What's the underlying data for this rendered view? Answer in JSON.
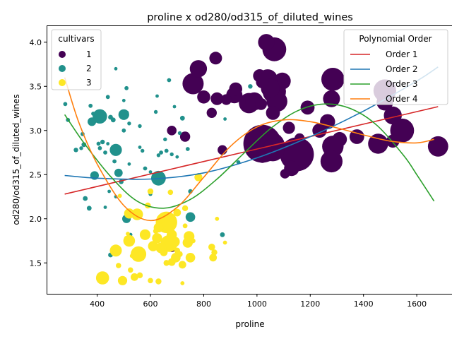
{
  "chart_data": {
    "type": "scatter",
    "title": "proline x od280/od315_of_diluted_wines",
    "xlabel": "proline",
    "ylabel": "od280/od315_of_diluted_wines",
    "xlim": [
      210,
      1735
    ],
    "ylim": [
      1.15,
      4.19
    ],
    "xticks": [
      400,
      600,
      800,
      1000,
      1200,
      1400,
      1600
    ],
    "yticks": [
      1.5,
      2.0,
      2.5,
      3.0,
      3.5,
      4.0
    ],
    "grid": false,
    "legend_cultivars": {
      "title": "cultivars",
      "placement": "top-left",
      "entries": [
        {
          "label": "1",
          "color": "#440154"
        },
        {
          "label": "2",
          "color": "#21918c"
        },
        {
          "label": "3",
          "color": "#fde725"
        }
      ]
    },
    "legend_fits": {
      "title": "Polynomial Order",
      "placement": "top-right",
      "entries": [
        {
          "label": "Order 1",
          "color": "#d62728"
        },
        {
          "label": "Order 2",
          "color": "#1f77b4"
        },
        {
          "label": "Order 3",
          "color": "#2ca02c"
        },
        {
          "label": "Order 4",
          "color": "#ff7f0e"
        }
      ]
    },
    "fit_lines": [
      {
        "name": "Order 1",
        "color": "#d62728",
        "x": [
          278,
          1680
        ],
        "y": [
          2.28,
          3.27
        ]
      },
      {
        "name": "Order 2",
        "color": "#1f77b4",
        "x": [
          278,
          400,
          600,
          800,
          1000,
          1200,
          1400,
          1600,
          1680
        ],
        "y": [
          2.49,
          2.46,
          2.45,
          2.52,
          2.69,
          2.93,
          3.22,
          3.56,
          3.72
        ]
      },
      {
        "name": "Order 3",
        "color": "#2ca02c",
        "x": [
          278,
          350,
          450,
          550,
          650,
          750,
          850,
          950,
          1050,
          1150,
          1250,
          1350,
          1450,
          1550,
          1600,
          1665
        ],
        "y": [
          3.18,
          2.86,
          2.48,
          2.2,
          2.12,
          2.22,
          2.45,
          2.74,
          3.02,
          3.22,
          3.3,
          3.25,
          3.06,
          2.72,
          2.5,
          2.2
        ]
      },
      {
        "name": "Order 4",
        "color": "#ff7f0e",
        "x": [
          278,
          330,
          400,
          500,
          600,
          700,
          800,
          900,
          1000,
          1100,
          1200,
          1300,
          1400,
          1500,
          1600,
          1665
        ],
        "y": [
          3.6,
          3.1,
          2.62,
          2.15,
          1.98,
          2.13,
          2.47,
          2.82,
          3.04,
          3.12,
          3.1,
          3.03,
          2.95,
          2.88,
          2.86,
          2.9
        ]
      }
    ],
    "series": [
      {
        "name": "1",
        "color": "#440154",
        "points": [
          [
            1065,
            3.92,
            1000
          ],
          [
            1035,
            4.0,
            480
          ],
          [
            1285,
            3.58,
            920
          ],
          [
            1040,
            3.58,
            700
          ],
          [
            1095,
            3.56,
            500
          ],
          [
            1480,
            3.45,
            900
          ],
          [
            1480,
            3.32,
            480
          ],
          [
            1065,
            3.44,
            950
          ],
          [
            1075,
            3.33,
            760
          ],
          [
            1050,
            3.48,
            620
          ],
          [
            760,
            3.53,
            780
          ],
          [
            780,
            3.7,
            520
          ],
          [
            1010,
            3.62,
            300
          ],
          [
            1020,
            3.55,
            280
          ],
          [
            845,
            3.82,
            280
          ],
          [
            970,
            3.31,
            720
          ],
          [
            990,
            3.33,
            560
          ],
          [
            915,
            3.4,
            460
          ],
          [
            920,
            3.47,
            300
          ],
          [
            800,
            3.38,
            300
          ],
          [
            850,
            3.36,
            280
          ],
          [
            1015,
            3.3,
            250
          ],
          [
            885,
            3.35,
            200
          ],
          [
            1280,
            3.36,
            500
          ],
          [
            1190,
            3.26,
            340
          ],
          [
            1060,
            3.2,
            340
          ],
          [
            1510,
            3.17,
            560
          ],
          [
            1545,
            3.0,
            1000
          ],
          [
            1265,
            3.1,
            400
          ],
          [
            1235,
            3.0,
            360
          ],
          [
            1120,
            3.03,
            260
          ],
          [
            1375,
            2.93,
            380
          ],
          [
            1310,
            2.9,
            380
          ],
          [
            1285,
            2.82,
            800
          ],
          [
            1280,
            2.65,
            850
          ],
          [
            1510,
            2.88,
            300
          ],
          [
            1455,
            2.85,
            700
          ],
          [
            1680,
            2.82,
            720
          ],
          [
            1150,
            2.73,
            2000
          ],
          [
            1020,
            2.85,
            2500
          ],
          [
            1050,
            2.82,
            1500
          ],
          [
            1060,
            2.78,
            900
          ],
          [
            1130,
            2.57,
            400
          ],
          [
            1105,
            2.51,
            160
          ],
          [
            1020,
            2.7,
            250
          ],
          [
            1000,
            2.8,
            380
          ],
          [
            1160,
            2.91,
            180
          ],
          [
            1030,
            3.0,
            200
          ],
          [
            870,
            2.78,
            160
          ],
          [
            830,
            3.2,
            180
          ],
          [
            730,
            2.93,
            180
          ],
          [
            680,
            3.0,
            160
          ],
          [
            680,
            1.67,
            120
          ]
        ]
      },
      {
        "name": "2",
        "color": "#21918c",
        "points": [
          [
            410,
            3.16,
            360
          ],
          [
            380,
            3.1,
            130
          ],
          [
            470,
            2.78,
            260
          ],
          [
            500,
            3.18,
            200
          ],
          [
            630,
            2.46,
            380
          ],
          [
            750,
            2.02,
            160
          ],
          [
            510,
            2.0,
            130
          ],
          [
            480,
            2.52,
            120
          ],
          [
            390,
            2.49,
            130
          ],
          [
            290,
            3.12,
            30
          ],
          [
            280,
            3.3,
            30
          ],
          [
            340,
            2.8,
            25
          ],
          [
            320,
            2.78,
            35
          ],
          [
            345,
            2.96,
            30
          ],
          [
            350,
            2.84,
            40
          ],
          [
            355,
            2.23,
            40
          ],
          [
            370,
            2.12,
            40
          ],
          [
            375,
            3.28,
            30
          ],
          [
            385,
            3.19,
            30
          ],
          [
            405,
            2.85,
            30
          ],
          [
            410,
            2.8,
            30
          ],
          [
            420,
            2.87,
            35
          ],
          [
            430,
            2.75,
            30
          ],
          [
            440,
            3.38,
            30
          ],
          [
            450,
            3.15,
            40
          ],
          [
            460,
            3.12,
            40
          ],
          [
            465,
            2.65,
            30
          ],
          [
            470,
            3.7,
            20
          ],
          [
            490,
            2.42,
            40
          ],
          [
            500,
            3.34,
            20
          ],
          [
            510,
            3.48,
            30
          ],
          [
            520,
            3.08,
            25
          ],
          [
            525,
            1.82,
            25
          ],
          [
            540,
            2.03,
            30
          ],
          [
            560,
            3.05,
            25
          ],
          [
            570,
            2.77,
            25
          ],
          [
            580,
            2.57,
            30
          ],
          [
            600,
            2.28,
            25
          ],
          [
            620,
            3.21,
            25
          ],
          [
            625,
            3.39,
            20
          ],
          [
            640,
            2.75,
            30
          ],
          [
            660,
            2.77,
            30
          ],
          [
            670,
            3.57,
            30
          ],
          [
            680,
            2.73,
            25
          ],
          [
            690,
            3.27,
            20
          ],
          [
            710,
            2.97,
            25
          ],
          [
            720,
            3.14,
            40
          ],
          [
            740,
            2.79,
            30
          ],
          [
            750,
            2.31,
            35
          ],
          [
            760,
            2.0,
            20
          ],
          [
            780,
            2.49,
            40
          ],
          [
            870,
            1.82,
            40
          ],
          [
            880,
            3.13,
            20
          ],
          [
            930,
            2.64,
            30
          ],
          [
            975,
            3.5,
            35
          ],
          [
            440,
            2.85,
            20
          ],
          [
            430,
            2.13,
            20
          ],
          [
            445,
            2.31,
            20
          ],
          [
            450,
            1.59,
            40
          ],
          [
            470,
            2.25,
            20
          ],
          [
            500,
            3.0,
            30
          ],
          [
            510,
            3.2,
            40
          ],
          [
            520,
            2.62,
            20
          ],
          [
            545,
            2.02,
            30
          ],
          [
            560,
            2.81,
            20
          ],
          [
            600,
            2.53,
            20
          ],
          [
            620,
            2.5,
            20
          ],
          [
            630,
            2.72,
            25
          ],
          [
            655,
            2.9,
            25
          ],
          [
            700,
            2.7,
            20
          ]
        ]
      },
      {
        "name": "3",
        "color": "#fde725",
        "points": [
          [
            660,
            1.96,
            800
          ],
          [
            670,
            1.72,
            500
          ],
          [
            555,
            1.6,
            420
          ],
          [
            640,
            1.67,
            200
          ],
          [
            580,
            1.82,
            200
          ],
          [
            520,
            1.75,
            240
          ],
          [
            550,
            2.05,
            240
          ],
          [
            520,
            2.06,
            180
          ],
          [
            470,
            1.64,
            250
          ],
          [
            420,
            1.33,
            300
          ],
          [
            495,
            1.3,
            150
          ],
          [
            630,
            1.29,
            60
          ],
          [
            600,
            1.3,
            50
          ],
          [
            540,
            1.34,
            100
          ],
          [
            560,
            1.36,
            60
          ],
          [
            570,
            1.55,
            30
          ],
          [
            590,
            2.15,
            60
          ],
          [
            600,
            2.31,
            60
          ],
          [
            610,
            1.69,
            180
          ],
          [
            625,
            1.78,
            180
          ],
          [
            630,
            1.9,
            160
          ],
          [
            640,
            2.0,
            120
          ],
          [
            650,
            1.62,
            100
          ],
          [
            660,
            1.5,
            60
          ],
          [
            680,
            1.51,
            100
          ],
          [
            680,
            1.82,
            180
          ],
          [
            690,
            1.74,
            200
          ],
          [
            695,
            1.56,
            160
          ],
          [
            700,
            2.07,
            100
          ],
          [
            720,
            1.48,
            100
          ],
          [
            730,
            2.12,
            60
          ],
          [
            740,
            1.73,
            180
          ],
          [
            745,
            1.8,
            200
          ],
          [
            750,
            1.56,
            160
          ],
          [
            780,
            2.47,
            110
          ],
          [
            830,
            1.68,
            80
          ],
          [
            835,
            1.56,
            100
          ],
          [
            840,
            1.62,
            60
          ],
          [
            850,
            2.0,
            30
          ],
          [
            880,
            1.73,
            30
          ],
          [
            720,
            1.27,
            30
          ],
          [
            530,
            1.58,
            30
          ],
          [
            515,
            1.83,
            30
          ],
          [
            480,
            1.47,
            50
          ],
          [
            525,
            1.42,
            50
          ],
          [
            620,
            1.86,
            50
          ],
          [
            640,
            1.9,
            40
          ],
          [
            655,
            1.62,
            40
          ],
          [
            675,
            2.3,
            50
          ],
          [
            700,
            1.64,
            60
          ],
          [
            710,
            1.6,
            60
          ],
          [
            730,
            1.92,
            40
          ],
          [
            760,
            1.75,
            40
          ],
          [
            510,
            1.78,
            40
          ],
          [
            485,
            2.26,
            30
          ]
        ]
      }
    ]
  }
}
